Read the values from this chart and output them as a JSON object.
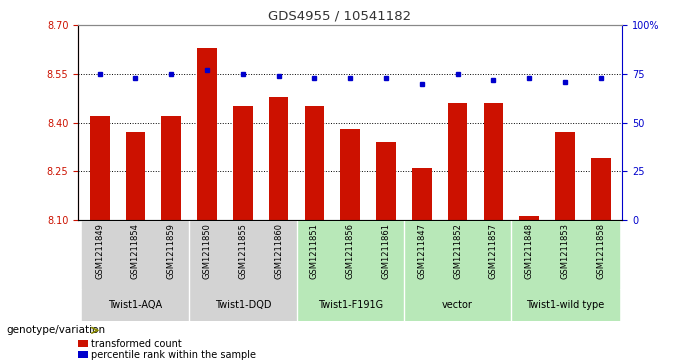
{
  "title": "GDS4955 / 10541182",
  "samples": [
    "GSM1211849",
    "GSM1211854",
    "GSM1211859",
    "GSM1211850",
    "GSM1211855",
    "GSM1211860",
    "GSM1211851",
    "GSM1211856",
    "GSM1211861",
    "GSM1211847",
    "GSM1211852",
    "GSM1211857",
    "GSM1211848",
    "GSM1211853",
    "GSM1211858"
  ],
  "bar_values": [
    8.42,
    8.37,
    8.42,
    8.63,
    8.45,
    8.48,
    8.45,
    8.38,
    8.34,
    8.26,
    8.46,
    8.46,
    8.11,
    8.37,
    8.29
  ],
  "percentile_values": [
    75,
    73,
    75,
    77,
    75,
    74,
    73,
    73,
    73,
    70,
    75,
    72,
    73,
    71,
    73
  ],
  "ylim_left": [
    8.1,
    8.7
  ],
  "ylim_right": [
    0,
    100
  ],
  "yticks_left": [
    8.1,
    8.25,
    8.4,
    8.55,
    8.7
  ],
  "yticks_right": [
    0,
    25,
    50,
    75,
    100
  ],
  "ytick_labels_right": [
    "0",
    "25",
    "50",
    "75",
    "100%"
  ],
  "bar_color": "#cc1100",
  "dot_color": "#0000cc",
  "groups": [
    {
      "label": "Twist1-AQA",
      "start": 0,
      "end": 3
    },
    {
      "label": "Twist1-DQD",
      "start": 3,
      "end": 6
    },
    {
      "label": "Twist1-F191G",
      "start": 6,
      "end": 9
    },
    {
      "label": "vector",
      "start": 9,
      "end": 12
    },
    {
      "label": "Twist1-wild type",
      "start": 12,
      "end": 15
    }
  ],
  "group_bg_colors": [
    "#d3d3d3",
    "#d3d3d3",
    "#b8e8b8",
    "#b8e8b8",
    "#b8e8b8"
  ],
  "sample_bg_colors_by_group": [
    0,
    0,
    0,
    1,
    1,
    1,
    2,
    2,
    2,
    3,
    3,
    3,
    4,
    4,
    4
  ],
  "legend_bar_label": "transformed count",
  "legend_dot_label": "percentile rank within the sample",
  "xlabel_label": "genotype/variation",
  "title_color": "#333333",
  "tick_color_left": "#cc1100",
  "tick_color_right": "#0000cc",
  "bar_width": 0.55
}
